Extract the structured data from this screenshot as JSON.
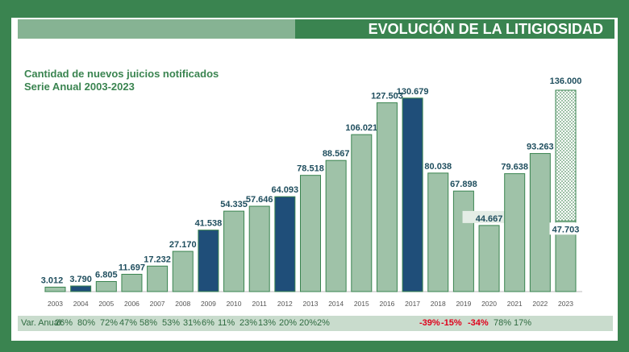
{
  "header": {
    "title": "EVOLUCIÓN DE LA LITIGIOSIDAD"
  },
  "subtitle": {
    "line1": "Cantidad de nuevos juicios notificados",
    "line2": "Serie Anual 2003-2023"
  },
  "colors": {
    "normal": "#9fc2a8",
    "highlight": "#1f4e79",
    "border": "#3a8450",
    "negative": "#e0001b"
  },
  "chart_data": {
    "type": "bar",
    "categories": [
      "2003",
      "2004",
      "2005",
      "2006",
      "2007",
      "2008",
      "2009",
      "2010",
      "2011",
      "2012",
      "2013",
      "2014",
      "2015",
      "2016",
      "2017",
      "2018",
      "2019",
      "2020",
      "2021",
      "2022",
      "2023"
    ],
    "values": [
      3012,
      3790,
      6805,
      11697,
      17232,
      27170,
      41538,
      54335,
      57646,
      64093,
      78518,
      88567,
      106021,
      127503,
      130679,
      80038,
      67898,
      44667,
      79638,
      93263,
      47703
    ],
    "value_labels": [
      "3.012",
      "3.790",
      "6.805",
      "11.697",
      "17.232",
      "27.170",
      "41.538",
      "54.335",
      "57.646",
      "64.093",
      "78.518",
      "88.567",
      "106.021",
      "127.503",
      "130.679",
      "80.038",
      "67.898",
      "44.667",
      "79.638",
      "93.263",
      "47.703"
    ],
    "highlighted": [
      "2004",
      "2009",
      "2012",
      "2017"
    ],
    "projection": {
      "category": "2023",
      "value": 136000,
      "label": "136.000"
    },
    "ylim": [
      0,
      140000
    ]
  },
  "var_anual": {
    "label": "Var. Anual:",
    "items": [
      "26%",
      "80%",
      "72%",
      "47%",
      "58%",
      "53%",
      "31%",
      "6%",
      "11%",
      "23%",
      "13%",
      "20%",
      "20%",
      "2%",
      "-39%",
      "-15%",
      "-34%",
      "78%",
      "17%"
    ]
  }
}
